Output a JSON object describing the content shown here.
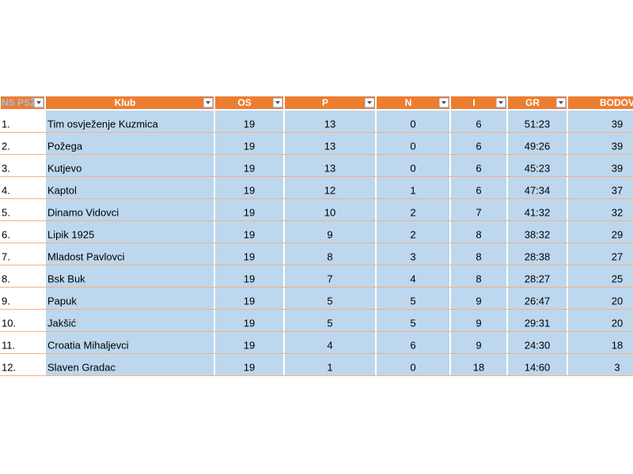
{
  "table": {
    "headers": [
      "NS PSŽ",
      "Klub",
      "OS",
      "P",
      "N",
      "I",
      "GR",
      "BODOV"
    ],
    "rows": [
      [
        "1.",
        "Tim osvježenje Kuzmica",
        19,
        13,
        0,
        6,
        "51:23",
        39
      ],
      [
        "2.",
        "Požega",
        19,
        13,
        0,
        6,
        "49:26",
        39
      ],
      [
        "3.",
        "Kutjevo",
        19,
        13,
        0,
        6,
        "45:23",
        39
      ],
      [
        "4.",
        "Kaptol",
        19,
        12,
        1,
        6,
        "47:34",
        37
      ],
      [
        "5.",
        "Dinamo Vidovci",
        19,
        10,
        2,
        7,
        "41:32",
        32
      ],
      [
        "6.",
        "Lipik 1925",
        19,
        9,
        2,
        8,
        "38:32",
        29
      ],
      [
        "7.",
        "Mladost Pavlovci",
        19,
        8,
        3,
        8,
        "28:38",
        27
      ],
      [
        "8.",
        "Bsk Buk",
        19,
        7,
        4,
        8,
        "28:27",
        25
      ],
      [
        "9.",
        "Papuk",
        19,
        5,
        5,
        9,
        "26:47",
        20
      ],
      [
        "10.",
        "Jakšić",
        19,
        5,
        5,
        9,
        "29:31",
        20
      ],
      [
        "11.",
        "Croatia Mihaljevci",
        19,
        4,
        6,
        9,
        "24:30",
        18
      ],
      [
        "12.",
        "Slaven Gradac",
        19,
        1,
        0,
        18,
        "14:60",
        3
      ]
    ]
  }
}
